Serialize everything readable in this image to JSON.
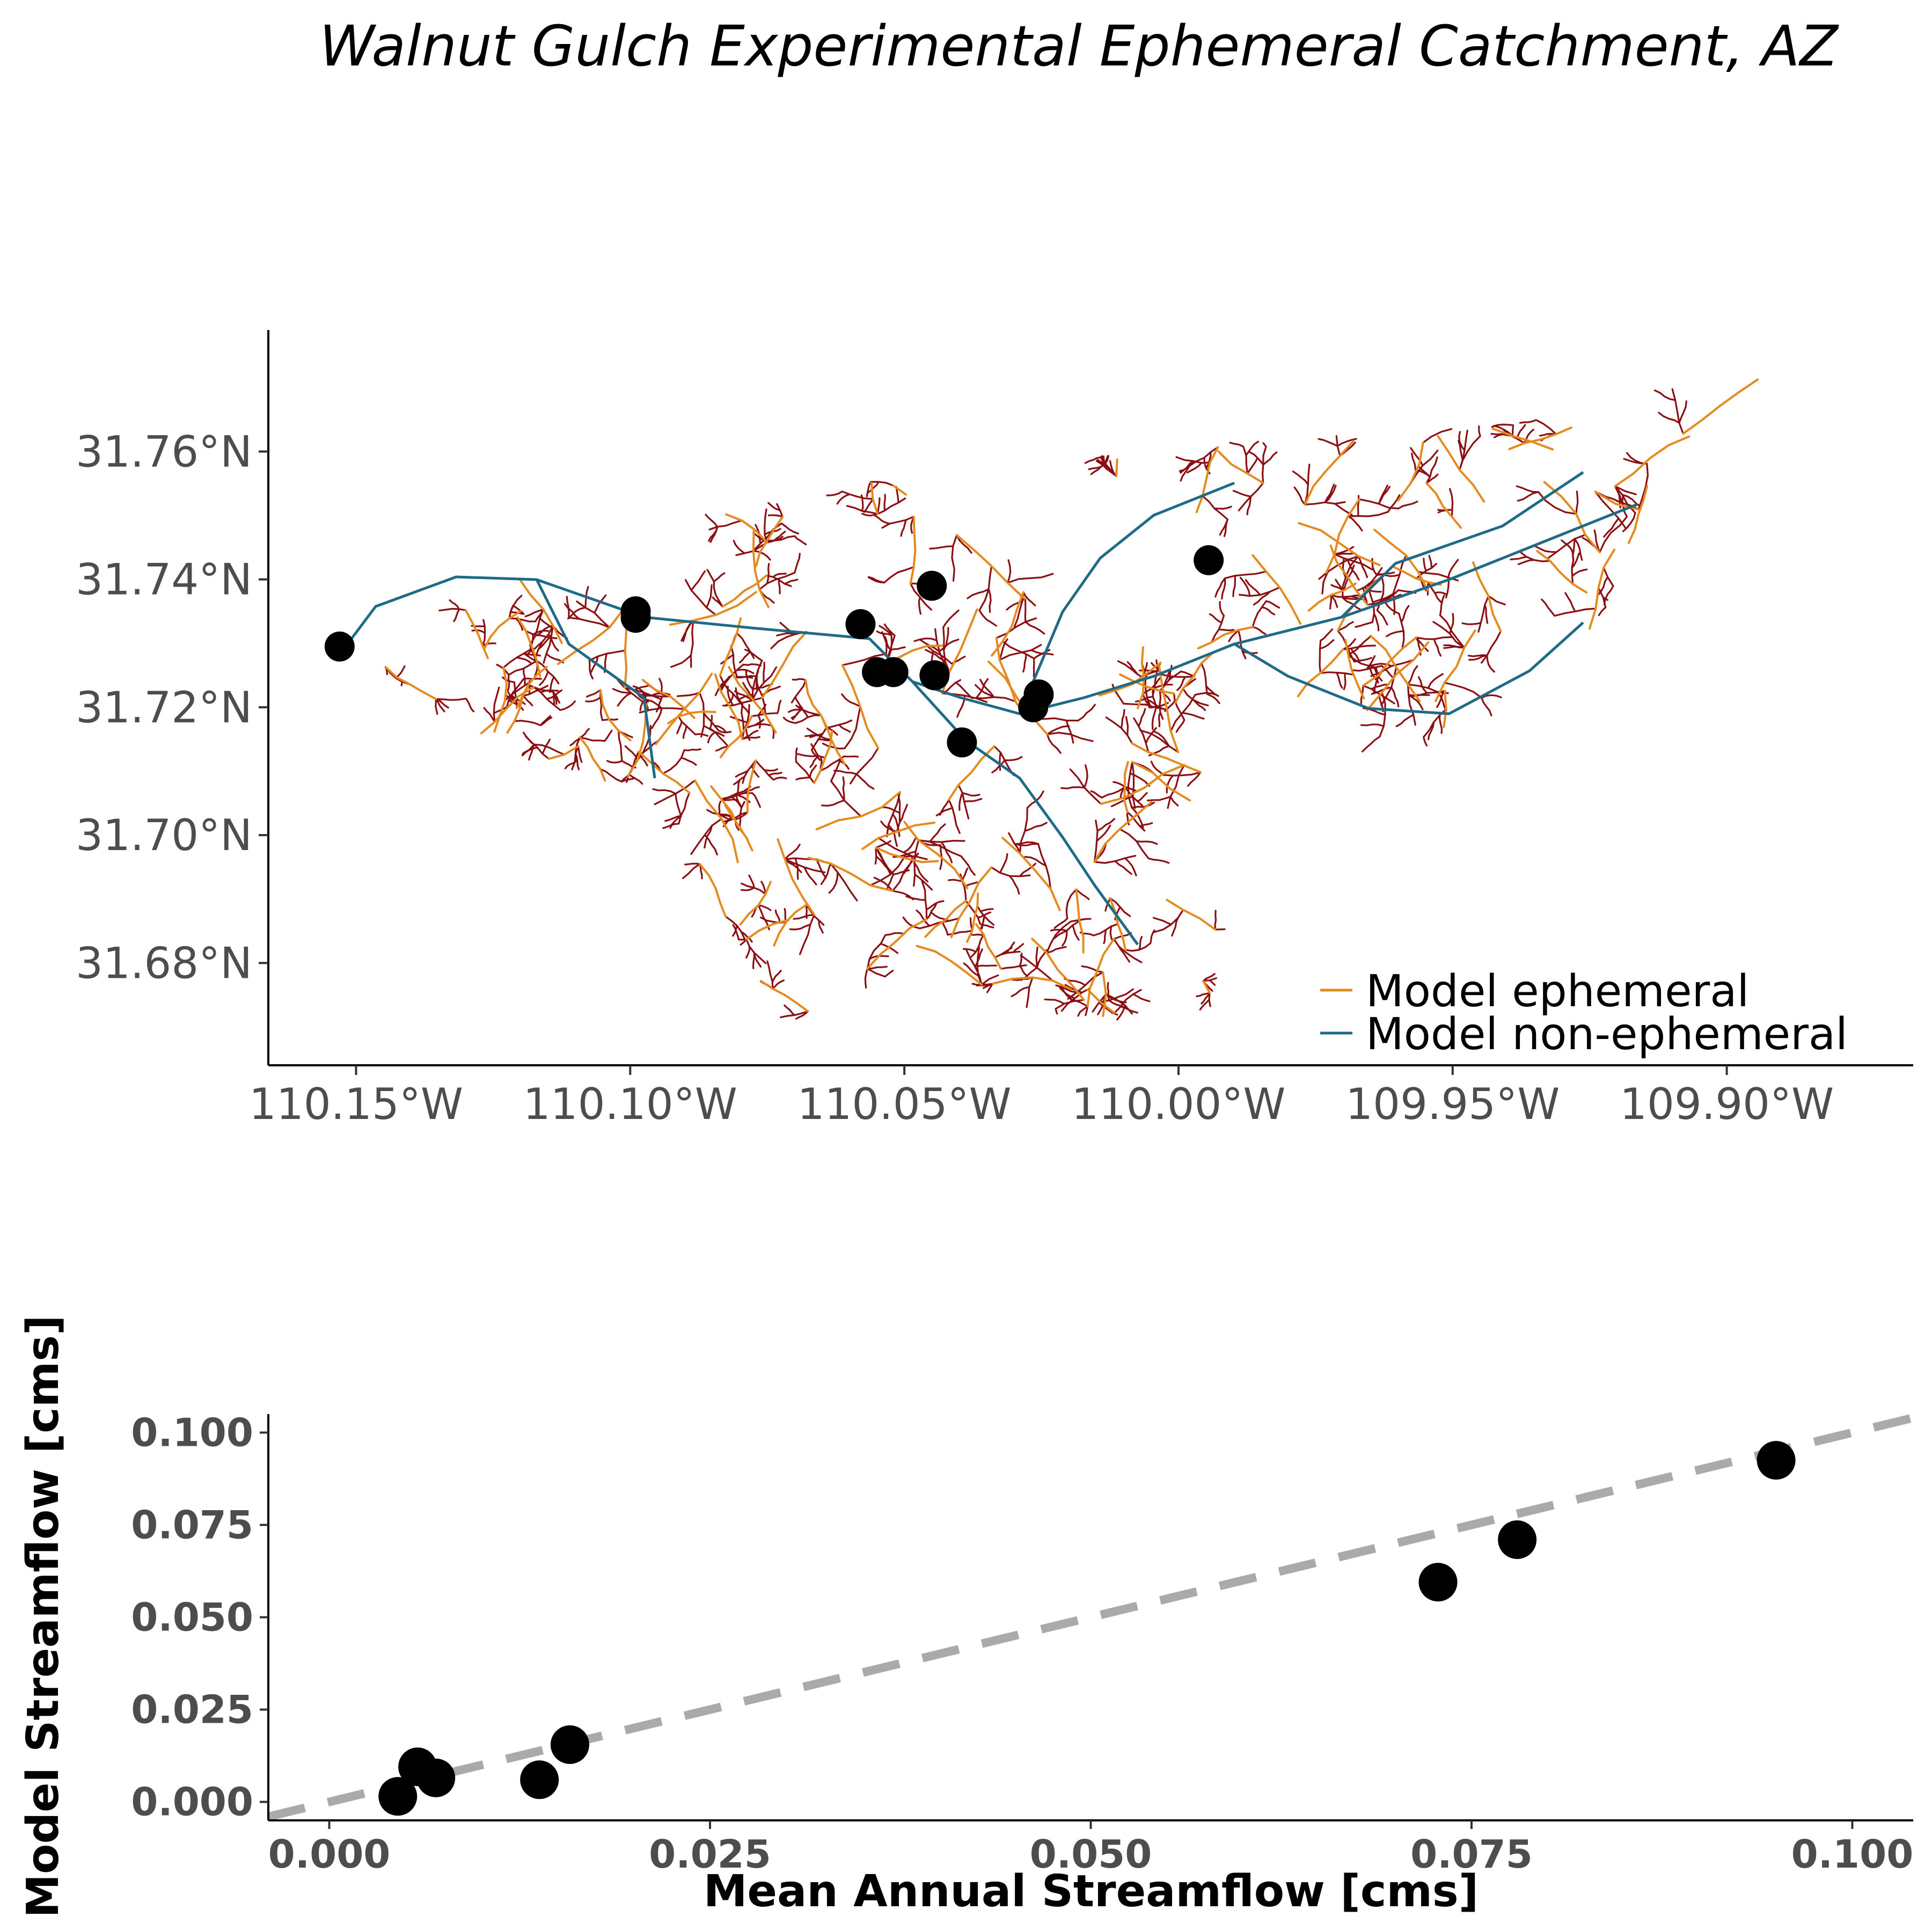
{
  "title": "Walnut Gulch Experimental Ephemeral Catchment, AZ",
  "colors": {
    "ephemeral": "#e58a1f",
    "non_ephemeral": "#1f6a86",
    "other_network": "#8b0f12",
    "gauges": "#000000",
    "one_to_one": "#aaaaaa"
  },
  "chart_data": [
    {
      "type": "map",
      "x_ticks": [
        "110.15°W",
        "110.10°W",
        "110.05°W",
        "110.00°W",
        "109.95°W",
        "109.90°W"
      ],
      "x_tick_values": [
        -110.15,
        -110.1,
        -110.05,
        -110.0,
        -109.95,
        -109.9
      ],
      "y_ticks": [
        "31.76°N",
        "31.74°N",
        "31.72°N",
        "31.70°N",
        "31.68°N"
      ],
      "y_tick_values": [
        31.76,
        31.74,
        31.72,
        31.7,
        31.68
      ],
      "xlim": [
        -110.166,
        -109.866
      ],
      "ylim": [
        31.664,
        31.779
      ],
      "legend": {
        "placement": "bottom-right",
        "entries": [
          {
            "label": "Model ephemeral",
            "color": "#e58a1f"
          },
          {
            "label": "Model non-ephemeral",
            "color": "#1f6a86"
          }
        ]
      },
      "gauges": [
        {
          "lon": -110.153,
          "lat": 31.7295
        },
        {
          "lon": -110.099,
          "lat": 31.735
        },
        {
          "lon": -110.099,
          "lat": 31.734
        },
        {
          "lon": -110.058,
          "lat": 31.733
        },
        {
          "lon": -110.045,
          "lat": 31.739
        },
        {
          "lon": -110.055,
          "lat": 31.7255
        },
        {
          "lon": -110.052,
          "lat": 31.7255
        },
        {
          "lon": -110.0445,
          "lat": 31.725
        },
        {
          "lon": -110.0395,
          "lat": 31.7145
        },
        {
          "lon": -110.0255,
          "lat": 31.722
        },
        {
          "lon": -110.0265,
          "lat": 31.72
        },
        {
          "lon": -109.9945,
          "lat": 31.743
        }
      ]
    },
    {
      "type": "scatter",
      "xlabel": "Mean Annual Streamflow [cms]",
      "ylabel": "Model Streamflow [cms]",
      "xlim": [
        -0.004,
        0.104
      ],
      "ylim": [
        -0.005,
        0.105
      ],
      "x_ticks": [
        "0.000",
        "0.025",
        "0.050",
        "0.075",
        "0.100"
      ],
      "x_tick_values": [
        0,
        0.025,
        0.05,
        0.075,
        0.1
      ],
      "y_ticks": [
        "0.000",
        "0.025",
        "0.050",
        "0.075",
        "0.100"
      ],
      "y_tick_values": [
        0,
        0.025,
        0.05,
        0.075,
        0.1
      ],
      "grid": false,
      "reference_line": "1:1 dashed",
      "points": [
        {
          "x": 0.0045,
          "y": 0.0015
        },
        {
          "x": 0.0058,
          "y": 0.0095
        },
        {
          "x": 0.007,
          "y": 0.0065
        },
        {
          "x": 0.0138,
          "y": 0.006
        },
        {
          "x": 0.0158,
          "y": 0.0155
        },
        {
          "x": 0.0728,
          "y": 0.0595
        },
        {
          "x": 0.078,
          "y": 0.071
        },
        {
          "x": 0.095,
          "y": 0.0925
        }
      ]
    }
  ]
}
